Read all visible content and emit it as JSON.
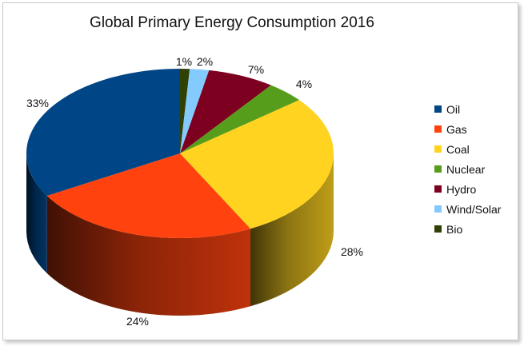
{
  "chart_data": {
    "type": "pie",
    "title": "Global Primary Energy Consumption 2016",
    "categories": [
      "Oil",
      "Gas",
      "Coal",
      "Nuclear",
      "Hydro",
      "Wind/Solar",
      "Bio"
    ],
    "values": [
      33,
      24,
      28,
      4,
      7,
      2,
      1
    ],
    "labels": [
      "33%",
      "24%",
      "28%",
      "4%",
      "7%",
      "2%",
      "1%"
    ],
    "colors": [
      "#004586",
      "#ff420e",
      "#ffd320",
      "#579d1c",
      "#7e0021",
      "#83caff",
      "#314004"
    ],
    "legend_position": "right"
  }
}
